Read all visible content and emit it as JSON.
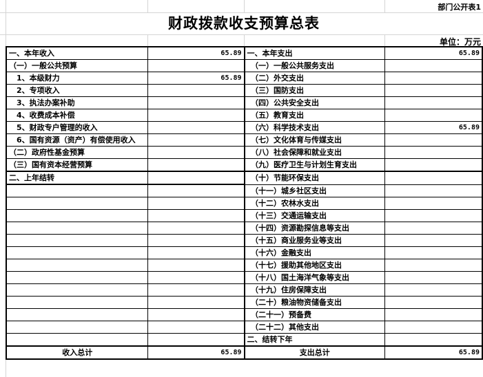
{
  "header": {
    "table_no": "部门公开表1",
    "title": "财政拨款收支预算总表",
    "unit": "单位：万元"
  },
  "rows": [
    {
      "l": "一、本年收入",
      "lv": "65.89",
      "r": "一、本年支出",
      "rv": "65.89"
    },
    {
      "l": "（一）一般公共预算",
      "lv": "",
      "r": "　（一）一般公共服务支出",
      "rv": ""
    },
    {
      "l": "　1、本级财力",
      "lv": "65.89",
      "r": "　（二）外交支出",
      "rv": ""
    },
    {
      "l": "　2、专项收入",
      "lv": "",
      "r": "　（三）国防支出",
      "rv": ""
    },
    {
      "l": "　3、执法办案补助",
      "lv": "",
      "r": "　（四）公共安全支出",
      "rv": ""
    },
    {
      "l": "　4、收费成本补偿",
      "lv": "",
      "r": "　（五）教育支出",
      "rv": ""
    },
    {
      "l": "　5、财政专户管理的收入",
      "lv": "",
      "r": "　（六）科学技术支出",
      "rv": "65.89"
    },
    {
      "l": "　6、国有资源（资产）有偿使用收入",
      "lv": "",
      "r": "　（七）文化体育与传媒支出",
      "rv": ""
    },
    {
      "l": "（二）政府性基金预算",
      "lv": "",
      "r": "　（八）社会保障和就业支出",
      "rv": ""
    },
    {
      "l": "（三）国有资本经营预算",
      "lv": "",
      "r": "　（九）医疗卫生与计划生育支出",
      "rv": ""
    },
    {
      "l": "二、上年结转",
      "lv": "",
      "r": "　（十）节能环保支出",
      "rv": ""
    },
    {
      "l": "",
      "lv": "",
      "r": "　（十一）城乡社区支出",
      "rv": ""
    },
    {
      "l": "",
      "lv": "",
      "r": "　（十二）农林水支出",
      "rv": ""
    },
    {
      "l": "",
      "lv": "",
      "r": "　（十三）交通运输支出",
      "rv": ""
    },
    {
      "l": "",
      "lv": "",
      "r": "　（十四）资源勘探信息等支出",
      "rv": ""
    },
    {
      "l": "",
      "lv": "",
      "r": "　（十五）商业服务业等支出",
      "rv": ""
    },
    {
      "l": "",
      "lv": "",
      "r": "　（十六）金融支出",
      "rv": ""
    },
    {
      "l": "",
      "lv": "",
      "r": "　（十七）援助其他地区支出",
      "rv": ""
    },
    {
      "l": "",
      "lv": "",
      "r": "　（十八）国土海洋气象等支出",
      "rv": ""
    },
    {
      "l": "",
      "lv": "",
      "r": "　（十九）住房保障支出",
      "rv": ""
    },
    {
      "l": "",
      "lv": "",
      "r": "　（二十）粮油物资储备支出",
      "rv": ""
    },
    {
      "l": "",
      "lv": "",
      "r": "　（二十一）预备费",
      "rv": ""
    },
    {
      "l": "",
      "lv": "",
      "r": "　（二十二）其他支出",
      "rv": ""
    },
    {
      "l": "",
      "lv": "",
      "r": "二、结转下年",
      "rv": ""
    }
  ],
  "totals": {
    "income_label": "收入总计",
    "income_value": "65.89",
    "expense_label": "支出总计",
    "expense_value": "65.89"
  }
}
